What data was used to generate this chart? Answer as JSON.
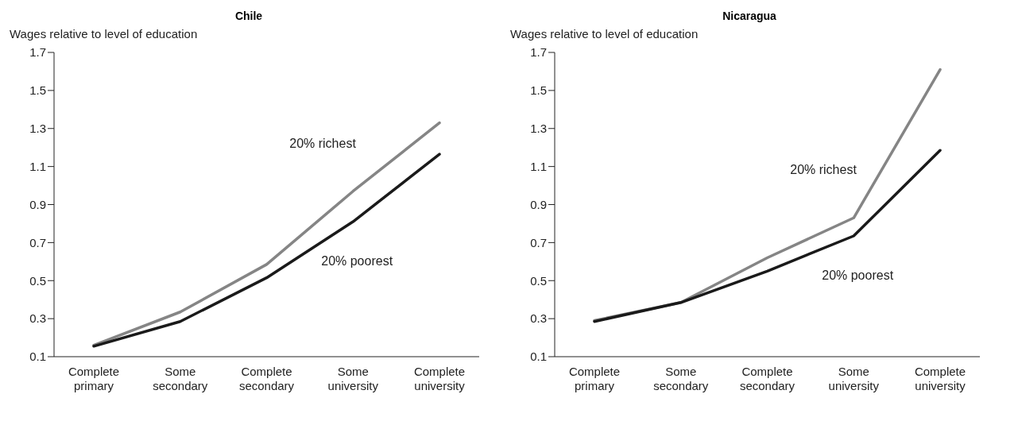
{
  "chart_data": [
    {
      "type": "line",
      "title": "Chile",
      "ylabel": "Wages relative to level of education",
      "categories": [
        "Complete primary",
        "Some secondary",
        "Complete secondary",
        "Some university",
        "Complete university"
      ],
      "series": [
        {
          "name": "20% richest",
          "color": "#858585",
          "values": [
            0.16,
            0.335,
            0.585,
            0.97,
            1.33
          ]
        },
        {
          "name": "20% poorest",
          "color": "#1a1a1a",
          "values": [
            0.155,
            0.285,
            0.515,
            0.81,
            1.165
          ]
        }
      ],
      "ylim": [
        0.1,
        1.7
      ],
      "yticks": [
        0.1,
        0.3,
        0.5,
        0.7,
        0.9,
        1.1,
        1.3,
        1.5,
        1.7
      ],
      "grid": false,
      "legend": false,
      "marker": "none",
      "line_style": "solid"
    },
    {
      "type": "line",
      "title": "Nicaragua",
      "ylabel": "Wages relative to level of education",
      "categories": [
        "Complete primary",
        "Some secondary",
        "Complete secondary",
        "Some university",
        "Complete university"
      ],
      "series": [
        {
          "name": "20% richest",
          "color": "#858585",
          "values": [
            0.29,
            0.385,
            0.62,
            0.83,
            1.61
          ]
        },
        {
          "name": "20% poorest",
          "color": "#1a1a1a",
          "values": [
            0.285,
            0.385,
            0.55,
            0.735,
            1.185
          ]
        }
      ],
      "ylim": [
        0.1,
        1.7
      ],
      "yticks": [
        0.1,
        0.3,
        0.5,
        0.7,
        0.9,
        1.1,
        1.3,
        1.5,
        1.7
      ],
      "grid": false,
      "legend": false,
      "marker": "none",
      "line_style": "solid"
    }
  ]
}
